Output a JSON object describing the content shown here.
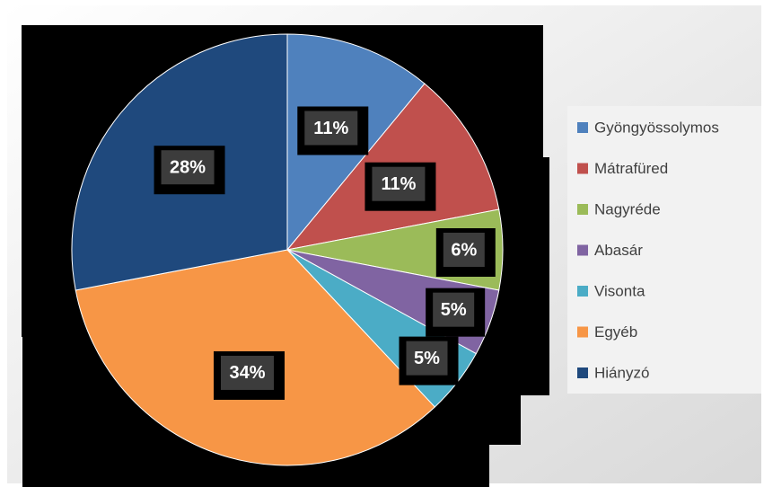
{
  "chart_data": {
    "type": "pie",
    "categories": [
      "Gyöngyössolymos",
      "Mátrafüred",
      "Nagyréde",
      "Abasár",
      "Visonta",
      "Egyéb",
      "Hiányzó"
    ],
    "values": [
      11,
      11,
      6,
      5,
      5,
      34,
      28
    ],
    "value_labels": [
      "11%",
      "11%",
      "6%",
      "5%",
      "5%",
      "34%",
      "28%"
    ],
    "colors": [
      "#4f81bd",
      "#c0504d",
      "#9bbb59",
      "#8064a2",
      "#4bacc6",
      "#f79646",
      "#1f497d"
    ],
    "legend": "right"
  }
}
